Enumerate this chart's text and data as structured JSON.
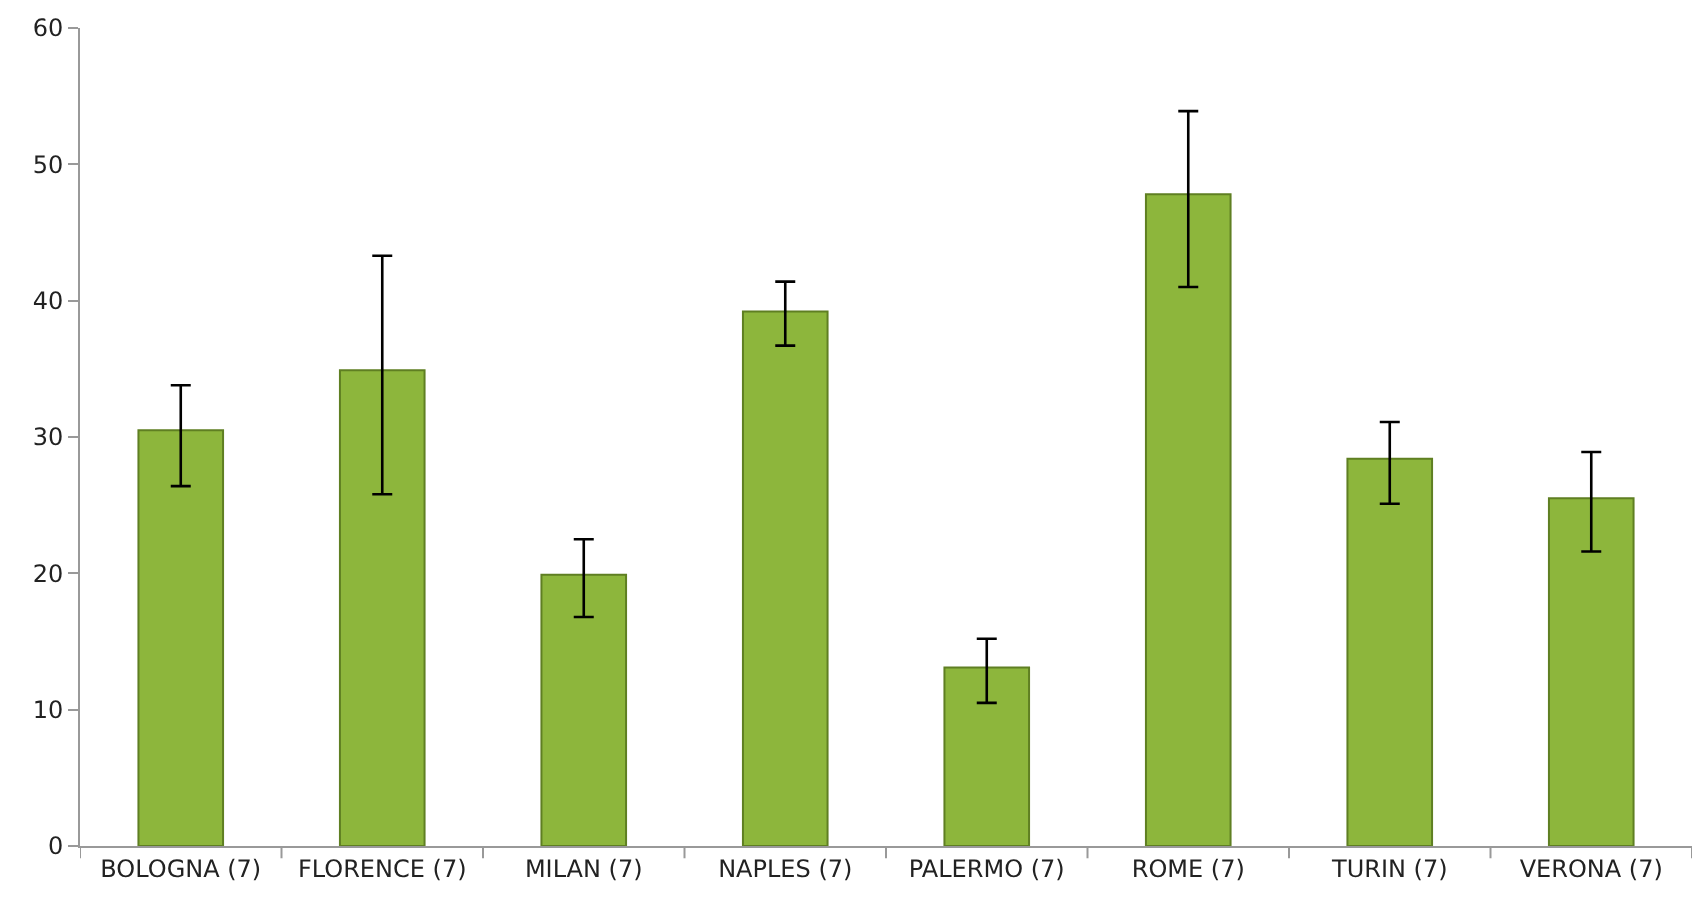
{
  "chart_data": {
    "type": "bar",
    "categories": [
      "BOLOGNA (7)",
      "FLORENCE (7)",
      "MILAN (7)",
      "NAPLES (7)",
      "PALERMO (7)",
      "ROME (7)",
      "TURIN (7)",
      "VERONA (7)"
    ],
    "values": [
      30.5,
      34.9,
      19.9,
      39.2,
      13.1,
      47.8,
      28.4,
      25.5
    ],
    "errors": [
      [
        26.4,
        33.8
      ],
      [
        25.8,
        43.3
      ],
      [
        16.8,
        22.5
      ],
      [
        36.7,
        41.4
      ],
      [
        10.5,
        15.2
      ],
      [
        41.0,
        53.9
      ],
      [
        25.1,
        31.1
      ],
      [
        21.6,
        28.9
      ]
    ],
    "color": "#8db63c",
    "ylim": [
      0,
      60
    ],
    "yticks": [
      0,
      10,
      20,
      30,
      40,
      50,
      60
    ]
  }
}
